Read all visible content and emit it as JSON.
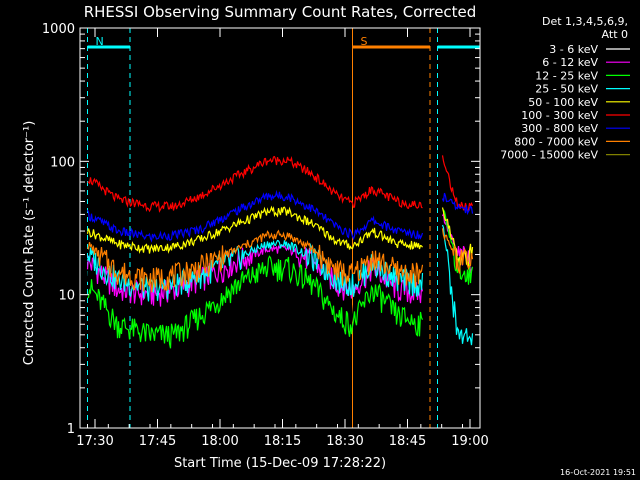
{
  "chart_data": {
    "type": "line",
    "title": "RHESSI Observing Summary Count Rates, Corrected",
    "xlabel": "Start Time (15-Dec-09 17:28:22)",
    "ylabel": "Corrected Count Rate (s⁻¹ detector⁻¹)",
    "y_scale": "log",
    "ylim": [
      1,
      1000
    ],
    "xlim": [
      -0.03,
      1.57
    ],
    "x_unit": "hours after 17:28:22",
    "y_ticks": [
      "1",
      "10",
      "100",
      "1000"
    ],
    "x_ticks": [
      {
        "t": 0.03,
        "label": "17:30"
      },
      {
        "t": 0.28,
        "label": "17:45"
      },
      {
        "t": 0.53,
        "label": "18:00"
      },
      {
        "t": 0.78,
        "label": "18:15"
      },
      {
        "t": 1.03,
        "label": "18:30"
      },
      {
        "t": 1.28,
        "label": "18:45"
      },
      {
        "t": 1.53,
        "label": "19:00"
      }
    ],
    "legend_header": [
      "Det 1,3,4,5,6,9,",
      "Att 0"
    ],
    "legend_position": "right",
    "timestamp": "16-Oct-2021 19:51",
    "annotations": [
      {
        "label": "N",
        "color": "#00ffff",
        "t_start": 0.0,
        "t_end": 0.17,
        "kind": "night"
      },
      {
        "label": "S",
        "color": "#ff8000",
        "t_start": 1.06,
        "t_end": 1.37,
        "kind": "saa"
      },
      {
        "label": "",
        "color": "#00ffff",
        "t_start": 1.4,
        "t_end": 1.57,
        "kind": "night"
      }
    ],
    "segments": [
      [
        0.0,
        1.34
      ],
      [
        1.42,
        1.54
      ]
    ],
    "series": [
      {
        "name": "3 - 6 keV",
        "color": "#000000",
        "values": [
          16,
          9,
          7,
          8,
          9,
          13,
          17,
          17,
          13,
          8,
          7,
          14,
          8,
          7,
          60,
          18,
          16
        ]
      },
      {
        "name": "6 - 12 keV",
        "color": "#ff00ff",
        "values": [
          18,
          11,
          10,
          11,
          13,
          18,
          22,
          22,
          18,
          12,
          11,
          16,
          11,
          10,
          40,
          20,
          18
        ]
      },
      {
        "name": "12 - 25 keV",
        "color": "#00ff00",
        "values": [
          12,
          6,
          5,
          5,
          7,
          12,
          16,
          16,
          12,
          7,
          6,
          11,
          7,
          6,
          45,
          16,
          14
        ]
      },
      {
        "name": "25 - 50 keV",
        "color": "#00ffff",
        "values": [
          20,
          13,
          11,
          12,
          14,
          19,
          24,
          24,
          19,
          13,
          12,
          17,
          13,
          12,
          35,
          5,
          5
        ]
      },
      {
        "name": "50 - 100 keV",
        "color": "#ffff00",
        "values": [
          30,
          24,
          22,
          23,
          26,
          34,
          42,
          42,
          34,
          25,
          23,
          30,
          24,
          23,
          45,
          20,
          20
        ]
      },
      {
        "name": "100 - 300 keV",
        "color": "#ff0000",
        "values": [
          75,
          52,
          46,
          46,
          55,
          78,
          102,
          102,
          80,
          55,
          48,
          62,
          50,
          46,
          105,
          47,
          45
        ]
      },
      {
        "name": "300 - 800 keV",
        "color": "#0000ff",
        "values": [
          40,
          30,
          27,
          28,
          31,
          43,
          55,
          55,
          44,
          32,
          28,
          36,
          30,
          28,
          55,
          45,
          44
        ]
      },
      {
        "name": "800 - 7000 keV",
        "color": "#ff8000",
        "values": [
          24,
          15,
          13,
          14,
          16,
          22,
          28,
          28,
          22,
          15,
          14,
          19,
          15,
          14,
          30,
          18,
          18
        ]
      },
      {
        "name": "7000 - 15000 keV",
        "color": "#808000",
        "values": [
          0,
          0,
          0,
          0,
          0,
          0,
          0,
          0,
          0,
          0,
          0,
          0,
          0,
          0,
          0,
          0,
          0
        ]
      }
    ],
    "x": [
      0.0,
      0.12,
      0.25,
      0.35,
      0.45,
      0.6,
      0.72,
      0.8,
      0.9,
      1.0,
      1.06,
      1.14,
      1.24,
      1.34,
      1.42,
      1.48,
      1.54
    ]
  }
}
